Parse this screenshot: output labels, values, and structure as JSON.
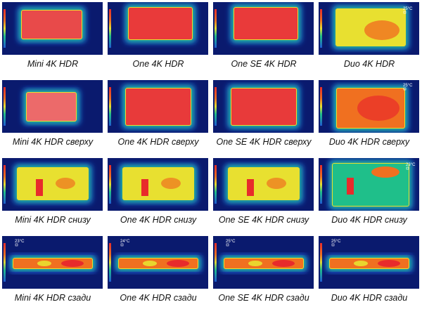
{
  "rows": [
    {
      "cells": [
        {
          "caption": "Mini 4K HDR",
          "view": "top-mini",
          "temp_label": ""
        },
        {
          "caption": "One 4K HDR",
          "view": "top-one",
          "temp_label": ""
        },
        {
          "caption": "One SE 4K HDR",
          "view": "top-one",
          "temp_label": ""
        },
        {
          "caption": "Duo 4K HDR",
          "view": "top-duo",
          "temp_label": "25°C"
        }
      ]
    },
    {
      "cells": [
        {
          "caption": "Mini 4K HDR сверху",
          "view": "above-mini",
          "temp_label": ""
        },
        {
          "caption": "One 4K HDR сверху",
          "view": "above-one",
          "temp_label": ""
        },
        {
          "caption": "One SE 4K HDR сверху",
          "view": "above-one",
          "temp_label": ""
        },
        {
          "caption": "Duo 4K HDR сверху",
          "view": "above-duo",
          "temp_label": "25°C"
        }
      ]
    },
    {
      "cells": [
        {
          "caption": "Mini 4K HDR снизу",
          "view": "below",
          "temp_label": ""
        },
        {
          "caption": "One 4K HDR снизу",
          "view": "below",
          "temp_label": ""
        },
        {
          "caption": "One SE 4K HDR снизу",
          "view": "below",
          "temp_label": ""
        },
        {
          "caption": "Duo 4K HDR снизу",
          "view": "below-duo",
          "temp_label": "23°C"
        }
      ]
    },
    {
      "cells": [
        {
          "caption": "Mini 4K HDR сзади",
          "view": "back",
          "temp_label": "23°C"
        },
        {
          "caption": "One 4K HDR сзади",
          "view": "back",
          "temp_label": "24°C"
        },
        {
          "caption": "One SE 4K HDR сзади",
          "view": "back",
          "temp_label": "25°C"
        },
        {
          "caption": "Duo 4K HDR сзади",
          "view": "back",
          "temp_label": "25°C"
        }
      ]
    }
  ],
  "colors": {
    "cold": "#0a1a6e",
    "cool": "#1f5bd1",
    "mid": "#1fbf8a",
    "warm": "#e8e030",
    "hot": "#f07020",
    "hottest": "#e82b2b"
  }
}
